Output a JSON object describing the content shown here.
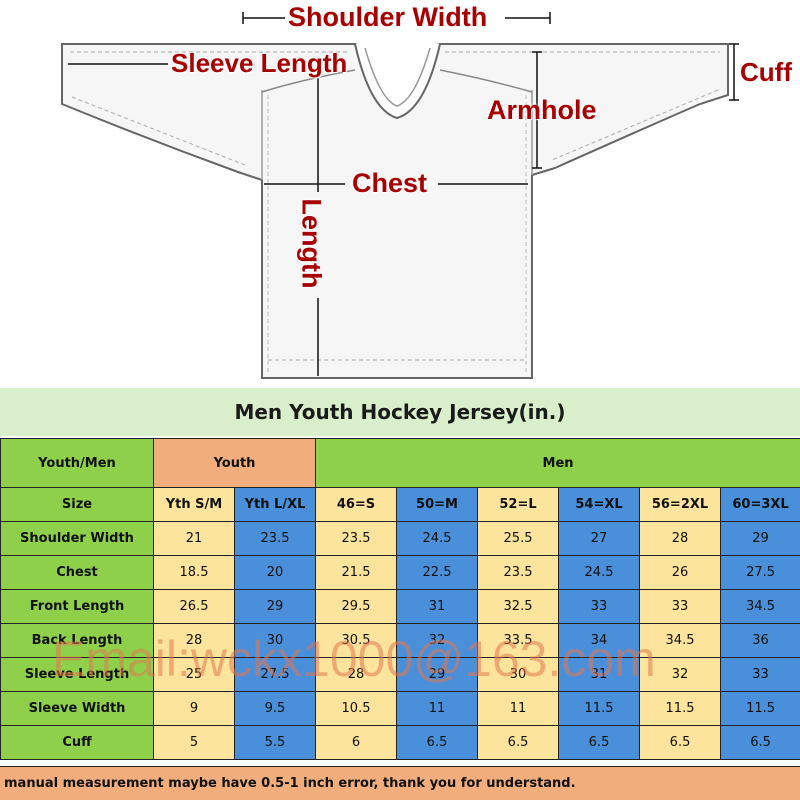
{
  "diagram": {
    "labels": {
      "shoulder_width": "Shoulder Width",
      "sleeve_length": "Sleeve Length",
      "cuff": "Cuff",
      "armhole": "Armhole",
      "chest": "Chest",
      "length": "Length"
    }
  },
  "table": {
    "title": "Men Youth Hockey Jersey(in.)",
    "group_label": "Youth/Men",
    "youth_label": "Youth",
    "men_label": "Men",
    "size_label": "Size",
    "sizes": [
      "Yth S/M",
      "Yth L/XL",
      "46=S",
      "50=M",
      "52=L",
      "54=XL",
      "56=2XL",
      "60=3XL"
    ],
    "rows": [
      {
        "label": "Shoulder Width",
        "values": [
          "21",
          "23.5",
          "23.5",
          "24.5",
          "25.5",
          "27",
          "28",
          "29"
        ]
      },
      {
        "label": "Chest",
        "values": [
          "18.5",
          "20",
          "21.5",
          "22.5",
          "23.5",
          "24.5",
          "26",
          "27.5"
        ]
      },
      {
        "label": "Front Length",
        "values": [
          "26.5",
          "29",
          "29.5",
          "31",
          "32.5",
          "33",
          "33",
          "34.5"
        ]
      },
      {
        "label": "Back Length",
        "values": [
          "28",
          "30",
          "30.5",
          "32",
          "33.5",
          "34",
          "34.5",
          "36"
        ]
      },
      {
        "label": "Sleeve Length",
        "values": [
          "25",
          "27.5",
          "28",
          "29",
          "30",
          "31",
          "32",
          "33"
        ]
      },
      {
        "label": "Sleeve Width",
        "values": [
          "9",
          "9.5",
          "10.5",
          "11",
          "11",
          "11.5",
          "11.5",
          "11.5"
        ]
      },
      {
        "label": "Cuff",
        "values": [
          "5",
          "5.5",
          "6",
          "6.5",
          "6.5",
          "6.5",
          "6.5",
          "6.5"
        ]
      }
    ],
    "note": "manual measurement maybe have 0.5-1 inch error, thank you for understand."
  },
  "watermark": "Email:wckx1000@163.com",
  "colors": {
    "label_green": "#8ed04a",
    "youth_orange": "#f2ad7c",
    "cell_yellow": "#fde49c",
    "cell_blue": "#4a8fd9",
    "title_green": "#d9efcc",
    "annotation_red": "#a80000"
  }
}
